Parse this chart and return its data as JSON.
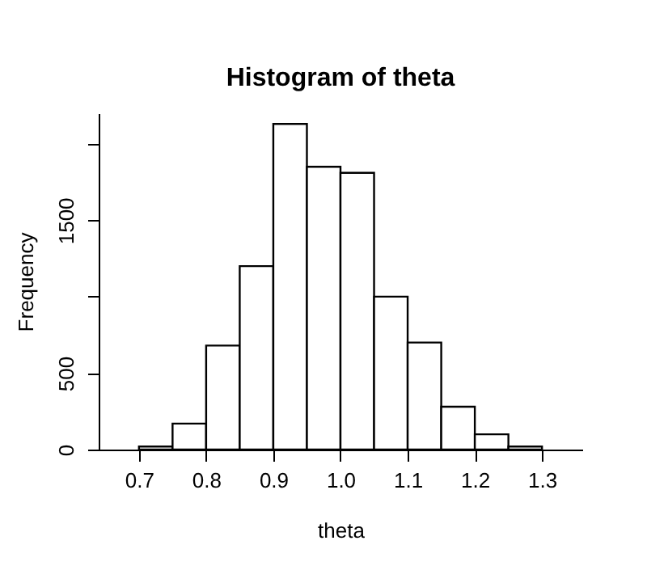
{
  "chart_data": {
    "type": "histogram",
    "title": "Histogram of theta",
    "xlabel": "theta",
    "ylabel": "Frequency",
    "bins": [
      0.7,
      0.75,
      0.8,
      0.85,
      0.9,
      0.95,
      1.0,
      1.05,
      1.1,
      1.15,
      1.2,
      1.25,
      1.3
    ],
    "values": [
      20,
      170,
      680,
      1200,
      2130,
      1850,
      1810,
      1000,
      700,
      280,
      100,
      20
    ],
    "color": "#ffffff",
    "xlim": [
      0.64,
      1.36
    ],
    "xticks": [
      {
        "value": 0.7,
        "label": "0.7"
      },
      {
        "value": 0.8,
        "label": "0.8"
      },
      {
        "value": 0.9,
        "label": "0.9"
      },
      {
        "value": 1.0,
        "label": "1.0"
      },
      {
        "value": 1.1,
        "label": "1.1"
      },
      {
        "value": 1.2,
        "label": "1.2"
      },
      {
        "value": 1.3,
        "label": "1.3"
      }
    ],
    "ylim": [
      0,
      2200
    ],
    "yticks": [
      0,
      500,
      {
        "value": 1000,
        "label": null
      },
      1500,
      {
        "value": 2000,
        "label": null
      }
    ],
    "grid": false
  }
}
